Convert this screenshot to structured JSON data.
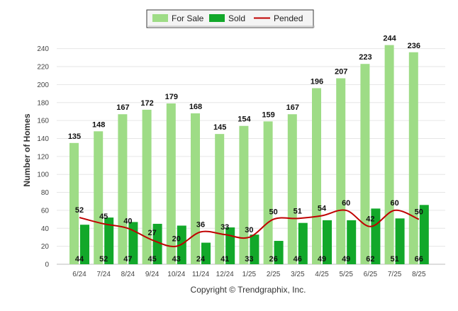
{
  "chart_data": {
    "type": "bar",
    "ylabel": "Number of Homes",
    "ylim": [
      0,
      250
    ],
    "y_ticks": [
      0,
      20,
      40,
      60,
      80,
      100,
      120,
      140,
      160,
      180,
      200,
      220,
      240
    ],
    "grid": true,
    "legend_position": "top-center",
    "categories": [
      "6/24",
      "7/24",
      "8/24",
      "9/24",
      "10/24",
      "11/24",
      "12/24",
      "1/25",
      "2/25",
      "3/25",
      "4/25",
      "5/25",
      "6/25",
      "7/25",
      "8/25"
    ],
    "series": [
      {
        "name": "For Sale",
        "type": "bar",
        "color": "#9edc86",
        "values": [
          135,
          148,
          167,
          172,
          179,
          168,
          145,
          154,
          159,
          167,
          196,
          207,
          223,
          244,
          236
        ]
      },
      {
        "name": "Sold",
        "type": "bar",
        "color": "#12a82a",
        "values": [
          44,
          52,
          47,
          45,
          43,
          24,
          41,
          33,
          26,
          46,
          49,
          49,
          62,
          51,
          66
        ]
      },
      {
        "name": "Pended",
        "type": "line",
        "color": "#c00000",
        "values": [
          52,
          45,
          40,
          27,
          20,
          36,
          33,
          30,
          50,
          51,
          54,
          60,
          42,
          60,
          50
        ]
      }
    ]
  },
  "legend": {
    "for_sale": "For Sale",
    "sold": "Sold",
    "pended": "Pended"
  },
  "copyright": "Copyright © Trendgraphix, Inc."
}
